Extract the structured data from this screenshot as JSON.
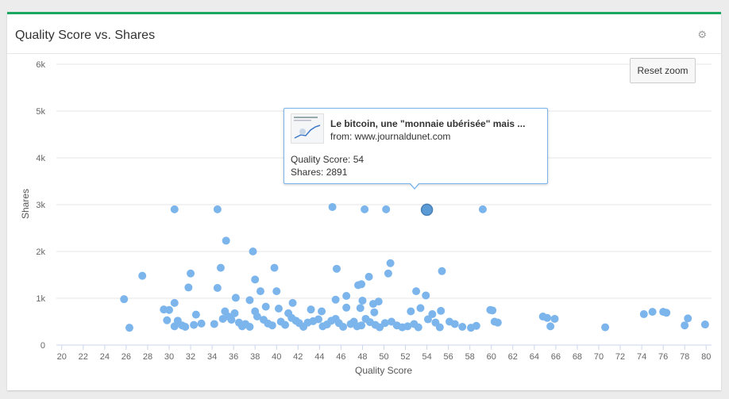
{
  "panel": {
    "title": "Quality Score vs. Shares",
    "settings_icon": "gear-icon"
  },
  "reset_zoom_label": "Reset zoom",
  "tooltip": {
    "title": "Le bitcoin, une \"monnaie ubérisée\" mais ...",
    "from": "from: www.journaldunet.com",
    "quality_line": "Quality Score: 54",
    "shares_line": "Shares: 2891"
  },
  "colors": {
    "accent": "#1aa760",
    "points": "#7cb5ec",
    "highlight": "#5b9bd5"
  },
  "chart_data": {
    "type": "scatter",
    "title": "Quality Score vs. Shares",
    "xlabel": "Quality Score",
    "ylabel": "Shares",
    "xlim": [
      19.5,
      80.5
    ],
    "ylim": [
      0,
      6000
    ],
    "x_ticks": [
      20,
      22,
      24,
      26,
      28,
      30,
      32,
      34,
      36,
      38,
      40,
      42,
      44,
      46,
      48,
      50,
      52,
      54,
      56,
      58,
      60,
      62,
      64,
      66,
      68,
      70,
      72,
      74,
      76,
      78,
      80
    ],
    "y_ticks": [
      0,
      1000,
      2000,
      3000,
      4000,
      5000,
      6000
    ],
    "y_tick_labels": [
      "0",
      "1k",
      "2k",
      "3k",
      "4k",
      "5k",
      "6k"
    ],
    "grid": true,
    "highlighted": {
      "x": 54,
      "y": 2891
    },
    "points": [
      [
        30.5,
        2900
      ],
      [
        34.5,
        2900
      ],
      [
        45.2,
        2950
      ],
      [
        48.2,
        2900
      ],
      [
        50.2,
        2900
      ],
      [
        54,
        2891
      ],
      [
        59.2,
        2900
      ],
      [
        35.3,
        2230
      ],
      [
        37.8,
        2000
      ],
      [
        39.8,
        1650
      ],
      [
        34.8,
        1650
      ],
      [
        32,
        1530
      ],
      [
        27.5,
        1480
      ],
      [
        45.6,
        1630
      ],
      [
        50.6,
        1750
      ],
      [
        50.4,
        1530
      ],
      [
        55.4,
        1580
      ],
      [
        31.8,
        1230
      ],
      [
        34.5,
        1220
      ],
      [
        38,
        1400
      ],
      [
        38.5,
        1150
      ],
      [
        40,
        1150
      ],
      [
        47.6,
        1280
      ],
      [
        47.9,
        1300
      ],
      [
        48.6,
        1460
      ],
      [
        53,
        1150
      ],
      [
        53.9,
        1060
      ],
      [
        25.8,
        980
      ],
      [
        30.5,
        900
      ],
      [
        36.2,
        1010
      ],
      [
        37.5,
        960
      ],
      [
        41.5,
        900
      ],
      [
        45.5,
        970
      ],
      [
        46.5,
        1050
      ],
      [
        48,
        950
      ],
      [
        49,
        880
      ],
      [
        49.5,
        930
      ],
      [
        29.5,
        760
      ],
      [
        30,
        750
      ],
      [
        32.5,
        650
      ],
      [
        35.2,
        720
      ],
      [
        36.1,
        680
      ],
      [
        38,
        720
      ],
      [
        39,
        820
      ],
      [
        40.2,
        780
      ],
      [
        43.2,
        760
      ],
      [
        44.2,
        720
      ],
      [
        46.5,
        800
      ],
      [
        47.8,
        790
      ],
      [
        49.1,
        700
      ],
      [
        52.5,
        720
      ],
      [
        53.4,
        790
      ],
      [
        54.5,
        660
      ],
      [
        55.3,
        730
      ],
      [
        59.9,
        750
      ],
      [
        60.1,
        740
      ],
      [
        64.8,
        610
      ],
      [
        65.2,
        580
      ],
      [
        65.9,
        560
      ],
      [
        74.2,
        660
      ],
      [
        75,
        710
      ],
      [
        76,
        710
      ],
      [
        76.3,
        690
      ],
      [
        78.3,
        570
      ],
      [
        26.3,
        370
      ],
      [
        29.8,
        530
      ],
      [
        30.5,
        400
      ],
      [
        30.8,
        520
      ],
      [
        31.2,
        420
      ],
      [
        31.5,
        390
      ],
      [
        32.3,
        430
      ],
      [
        33,
        460
      ],
      [
        34.2,
        450
      ],
      [
        35,
        560
      ],
      [
        35.5,
        610
      ],
      [
        35.8,
        540
      ],
      [
        36.5,
        480
      ],
      [
        36.8,
        400
      ],
      [
        37.1,
        450
      ],
      [
        37.5,
        390
      ],
      [
        38.2,
        610
      ],
      [
        38.8,
        540
      ],
      [
        39.2,
        460
      ],
      [
        39.6,
        420
      ],
      [
        40.4,
        500
      ],
      [
        40.8,
        430
      ],
      [
        41.1,
        680
      ],
      [
        41.4,
        580
      ],
      [
        41.8,
        520
      ],
      [
        42.1,
        470
      ],
      [
        42.5,
        390
      ],
      [
        42.9,
        480
      ],
      [
        43.4,
        510
      ],
      [
        43.9,
        550
      ],
      [
        44.3,
        400
      ],
      [
        44.7,
        440
      ],
      [
        45.1,
        520
      ],
      [
        45.5,
        560
      ],
      [
        45.8,
        470
      ],
      [
        46.2,
        390
      ],
      [
        46.9,
        450
      ],
      [
        47.2,
        500
      ],
      [
        47.5,
        400
      ],
      [
        47.9,
        420
      ],
      [
        48.3,
        560
      ],
      [
        48.7,
        490
      ],
      [
        49.2,
        430
      ],
      [
        49.6,
        380
      ],
      [
        50.1,
        470
      ],
      [
        50.7,
        500
      ],
      [
        51.2,
        420
      ],
      [
        51.7,
        380
      ],
      [
        52.2,
        400
      ],
      [
        52.8,
        450
      ],
      [
        53.2,
        380
      ],
      [
        54.1,
        550
      ],
      [
        54.8,
        480
      ],
      [
        55.2,
        380
      ],
      [
        56.1,
        500
      ],
      [
        56.6,
        450
      ],
      [
        57.3,
        390
      ],
      [
        58.1,
        370
      ],
      [
        58.6,
        410
      ],
      [
        60.3,
        500
      ],
      [
        60.6,
        480
      ],
      [
        65.5,
        400
      ],
      [
        70.6,
        380
      ],
      [
        78,
        420
      ],
      [
        79.9,
        440
      ]
    ]
  }
}
